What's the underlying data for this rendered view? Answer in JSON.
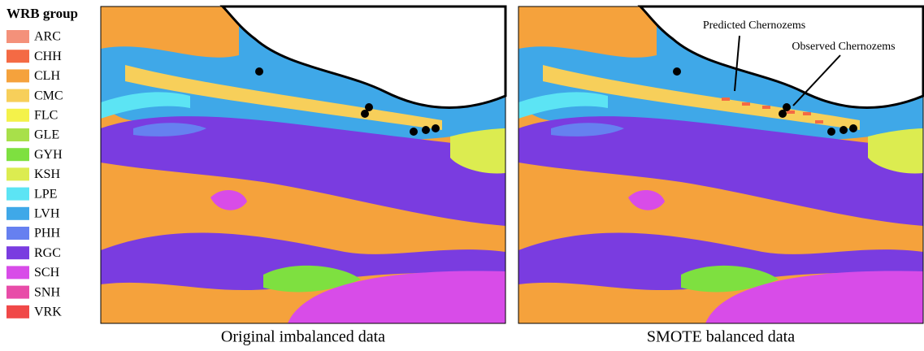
{
  "legend": {
    "title": "WRB group",
    "items": [
      {
        "label": "ARC",
        "color": "#f4917a"
      },
      {
        "label": "CHH",
        "color": "#f46a44"
      },
      {
        "label": "CLH",
        "color": "#f5a23c"
      },
      {
        "label": "CMC",
        "color": "#f7cf5a"
      },
      {
        "label": "FLC",
        "color": "#f4f24a"
      },
      {
        "label": "GLE",
        "color": "#a8e04a"
      },
      {
        "label": "GYH",
        "color": "#7ee040"
      },
      {
        "label": "KSH",
        "color": "#dcec50"
      },
      {
        "label": "LPE",
        "color": "#5ce4f4"
      },
      {
        "label": "LVH",
        "color": "#3fa8e8"
      },
      {
        "label": "PHH",
        "color": "#6680f0"
      },
      {
        "label": "RGC",
        "color": "#7a3ce0"
      },
      {
        "label": "SCH",
        "color": "#d84ce8"
      },
      {
        "label": "SNH",
        "color": "#e84ca8"
      },
      {
        "label": "VRK",
        "color": "#f04848"
      }
    ]
  },
  "panels": [
    {
      "caption": "Original imbalanced data"
    },
    {
      "caption": "SMOTE balanced data",
      "annotations": [
        "Predicted Chernozems",
        "Observed Chernozems"
      ]
    }
  ]
}
